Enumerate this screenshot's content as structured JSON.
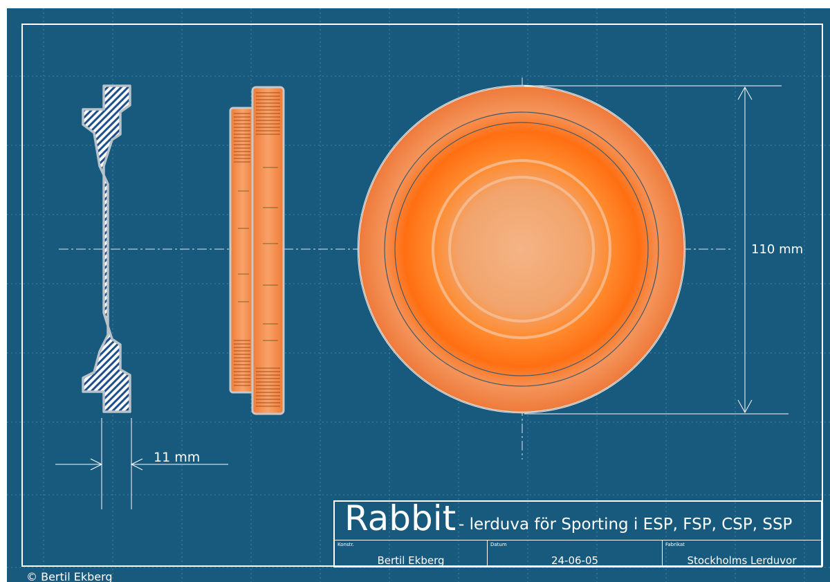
{
  "dimensions": {
    "diameter_label": "110 mm",
    "thickness_label": "11 mm"
  },
  "title_block": {
    "name": "Rabbit",
    "subtitle": "- lerduva för Sporting i ESP, FSP, CSP, SSP",
    "fields": [
      {
        "label": "Konstr.",
        "value": "Bertil Ekberg"
      },
      {
        "label": "Datum",
        "value": "24-06-05"
      },
      {
        "label": "Fabrikat",
        "value": "Stockholms Lerduvor"
      }
    ]
  },
  "copyright": "© Bertil Ekberg",
  "colors": {
    "background": "#185a7d",
    "disc_orange": "#ff7a1f",
    "disc_light": "#f0b080",
    "outline": "#ffffff"
  }
}
